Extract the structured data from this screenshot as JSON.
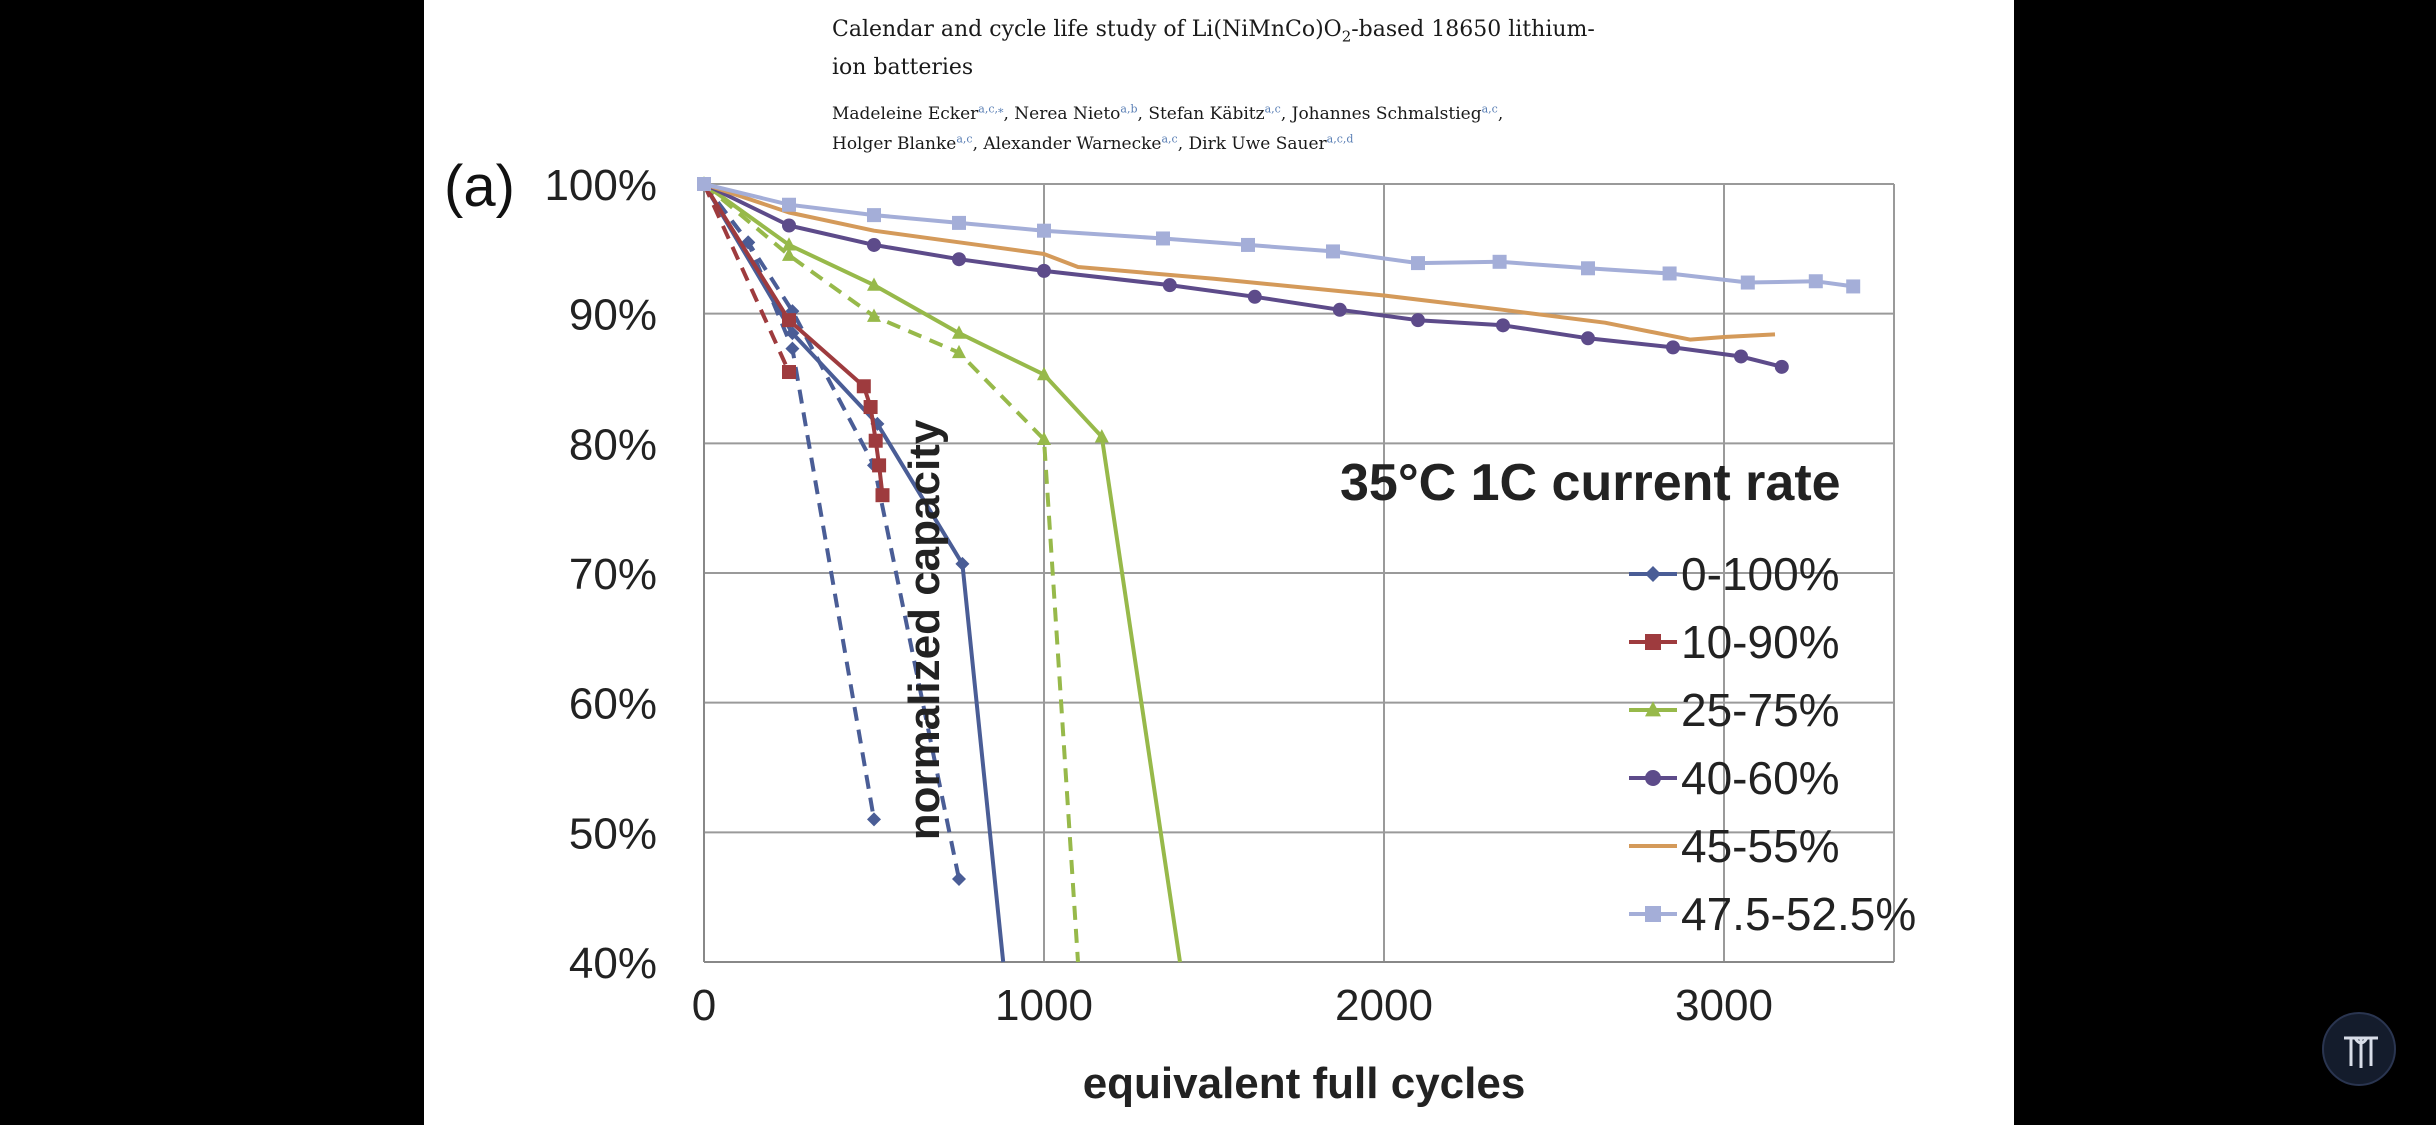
{
  "paper": {
    "title_line1": "Calendar and cycle life study of Li(NiMnCo)O",
    "title_sub": "2",
    "title_line1_end": "-based 18650 lithium-",
    "title_line2": "ion batteries",
    "authors": [
      {
        "name": "Madeleine Ecker",
        "sup": "a,c,⁎",
        "sep": ", "
      },
      {
        "name": "Nerea Nieto",
        "sup": "a,b",
        "sep": ", "
      },
      {
        "name": "Stefan Käbitz",
        "sup": "a,c",
        "sep": ", "
      },
      {
        "name": "Johannes Schmalstieg",
        "sup": "a,c",
        "sep": ","
      },
      {
        "name": "Holger Blanke",
        "sup": "a,c",
        "sep": ", "
      },
      {
        "name": "Alexander Warnecke",
        "sup": "a,c",
        "sep": ", "
      },
      {
        "name": "Dirk Uwe Sauer",
        "sup": "a,c,d",
        "sep": ""
      }
    ]
  },
  "chart_data": {
    "type": "line",
    "panel_label": "(a)",
    "annotation": "35°C  1C current rate",
    "xlabel": "equivalent full cycles",
    "ylabel": "normalized capacity",
    "xlim": [
      0,
      3500
    ],
    "ylim": [
      40,
      100
    ],
    "x_ticks": [
      0,
      1000,
      2000,
      3000
    ],
    "y_ticks": [
      40,
      50,
      60,
      70,
      80,
      90,
      100
    ],
    "y_tick_labels": [
      "40%",
      "50%",
      "60%",
      "70%",
      "80%",
      "90%",
      "100%"
    ],
    "grid": true,
    "legend_position": "right",
    "series": [
      {
        "name": "0-100%",
        "marker": "diamond",
        "color": "#4a5d96",
        "dashed": false,
        "x": [
          0,
          260,
          510,
          760,
          880
        ],
        "y": [
          100,
          88.5,
          81.5,
          70.7,
          40
        ]
      },
      {
        "name": "0-100%",
        "marker": "diamond",
        "color": "#4a5d96",
        "dashed": true,
        "legend": false,
        "x": [
          0,
          130,
          260,
          500
        ],
        "y": [
          100,
          95.5,
          87.3,
          51
        ]
      },
      {
        "name": "0-100%",
        "marker": "diamond",
        "color": "#4a5d96",
        "dashed": true,
        "legend": false,
        "x": [
          0,
          130,
          260,
          500,
          750
        ],
        "y": [
          100,
          95.5,
          90.2,
          78.3,
          46.4
        ]
      },
      {
        "name": "10-90%",
        "marker": "square",
        "color": "#9e3b3e",
        "dashed": false,
        "x": [
          0,
          250,
          470,
          490,
          505,
          515,
          525
        ],
        "y": [
          100,
          89.5,
          84.4,
          82.8,
          80.2,
          78.3,
          76
        ]
      },
      {
        "name": "10-90%",
        "marker": "square",
        "color": "#9e3b3e",
        "dashed": true,
        "legend": false,
        "x": [
          0,
          250
        ],
        "y": [
          100,
          85.5
        ]
      },
      {
        "name": "25-75%",
        "marker": "triangle",
        "color": "#97b94a",
        "dashed": false,
        "x": [
          0,
          250,
          500,
          750,
          1000,
          1170,
          1400
        ],
        "y": [
          100,
          95.3,
          92.2,
          88.5,
          85.3,
          80.5,
          40
        ]
      },
      {
        "name": "25-75%",
        "marker": "triangle",
        "color": "#97b94a",
        "dashed": true,
        "legend": false,
        "x": [
          0,
          250,
          500,
          750,
          1000,
          1100
        ],
        "y": [
          100,
          94.5,
          89.8,
          87,
          80.3,
          40
        ]
      },
      {
        "name": "40-60%",
        "marker": "circle",
        "color": "#5d4b8a",
        "dashed": false,
        "x": [
          0,
          250,
          500,
          750,
          1000,
          1370,
          1620,
          1870,
          2100,
          2350,
          2600,
          2850,
          3050,
          3170
        ],
        "y": [
          100,
          96.8,
          95.3,
          94.2,
          93.3,
          92.2,
          91.3,
          90.3,
          89.5,
          89.1,
          88.1,
          87.4,
          86.7,
          85.9
        ]
      },
      {
        "name": "45-55%",
        "marker": "none",
        "color": "#d49a5a",
        "dashed": false,
        "x": [
          0,
          250,
          500,
          750,
          1000,
          1100,
          1500,
          2000,
          2350,
          2650,
          2900,
          3000,
          3150
        ],
        "y": [
          100,
          97.8,
          96.4,
          95.5,
          94.6,
          93.6,
          92.7,
          91.4,
          90.3,
          89.3,
          88,
          88.2,
          88.4
        ]
      },
      {
        "name": "47.5-52.5%",
        "marker": "square",
        "color": "#a4aed8",
        "dashed": false,
        "x": [
          0,
          250,
          500,
          750,
          1000,
          1350,
          1600,
          1850,
          2100,
          2340,
          2600,
          2840,
          3070,
          3270,
          3380
        ],
        "y": [
          100,
          98.4,
          97.6,
          97,
          96.4,
          95.8,
          95.3,
          94.8,
          93.9,
          94,
          93.5,
          93.1,
          92.4,
          92.5,
          92.1
        ]
      }
    ]
  }
}
